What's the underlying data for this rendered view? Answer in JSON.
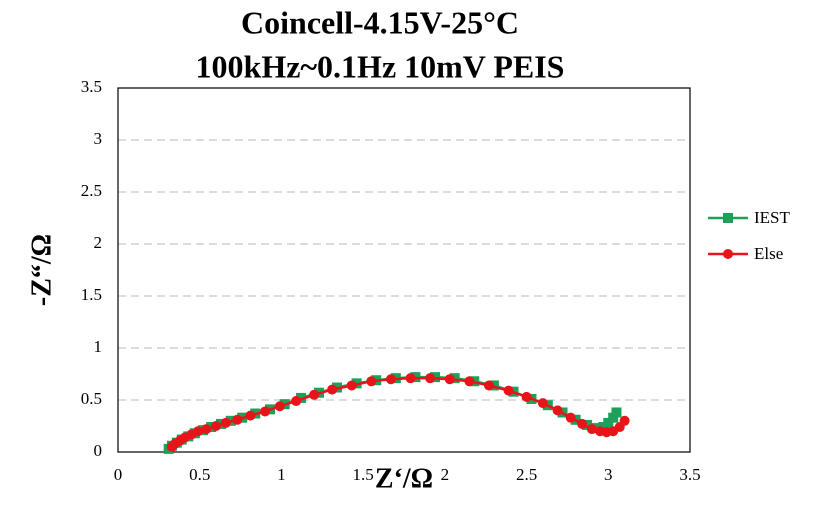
{
  "chart_data": {
    "type": "line",
    "title": "Coincell-4.15V-25°C",
    "subtitle": "100kHz~0.1Hz 10mV PEIS",
    "x_label": "Z‘/Ω",
    "y_label": "-Z“/Ω",
    "xlim": [
      0,
      3.5
    ],
    "ylim": [
      0,
      3.5
    ],
    "xticks": [
      0,
      0.5,
      1,
      1.5,
      2,
      2.5,
      3,
      3.5
    ],
    "yticks": [
      0,
      0.5,
      1,
      1.5,
      2,
      2.5,
      3,
      3.5
    ],
    "grid": true,
    "legend": "right",
    "series": [
      {
        "name": "IEST",
        "color": "#1fa05a",
        "marker": "square",
        "x": [
          0.31,
          0.33,
          0.36,
          0.39,
          0.43,
          0.47,
          0.52,
          0.57,
          0.63,
          0.69,
          0.76,
          0.84,
          0.93,
          1.02,
          1.12,
          1.23,
          1.34,
          1.46,
          1.58,
          1.7,
          1.82,
          1.94,
          2.06,
          2.18,
          2.3,
          2.42,
          2.53,
          2.63,
          2.72,
          2.8,
          2.87,
          2.93,
          2.97,
          3.0,
          3.03,
          3.05
        ],
        "values": [
          0.03,
          0.06,
          0.09,
          0.12,
          0.15,
          0.18,
          0.21,
          0.24,
          0.27,
          0.3,
          0.33,
          0.37,
          0.41,
          0.46,
          0.52,
          0.57,
          0.62,
          0.66,
          0.69,
          0.71,
          0.72,
          0.72,
          0.71,
          0.68,
          0.64,
          0.58,
          0.51,
          0.45,
          0.38,
          0.31,
          0.26,
          0.23,
          0.24,
          0.28,
          0.33,
          0.38
        ]
      },
      {
        "name": "Else",
        "color": "#e8141a",
        "marker": "circle",
        "x": [
          0.33,
          0.35,
          0.38,
          0.41,
          0.45,
          0.49,
          0.54,
          0.6,
          0.66,
          0.73,
          0.81,
          0.9,
          0.99,
          1.09,
          1.2,
          1.31,
          1.43,
          1.55,
          1.67,
          1.79,
          1.91,
          2.03,
          2.15,
          2.27,
          2.39,
          2.5,
          2.6,
          2.69,
          2.77,
          2.84,
          2.9,
          2.95,
          2.99,
          3.03,
          3.07,
          3.1
        ],
        "values": [
          0.05,
          0.08,
          0.11,
          0.14,
          0.17,
          0.2,
          0.22,
          0.25,
          0.28,
          0.31,
          0.35,
          0.39,
          0.44,
          0.49,
          0.55,
          0.6,
          0.64,
          0.68,
          0.7,
          0.71,
          0.71,
          0.7,
          0.68,
          0.64,
          0.59,
          0.53,
          0.47,
          0.4,
          0.33,
          0.27,
          0.22,
          0.2,
          0.19,
          0.2,
          0.24,
          0.3
        ]
      }
    ]
  }
}
